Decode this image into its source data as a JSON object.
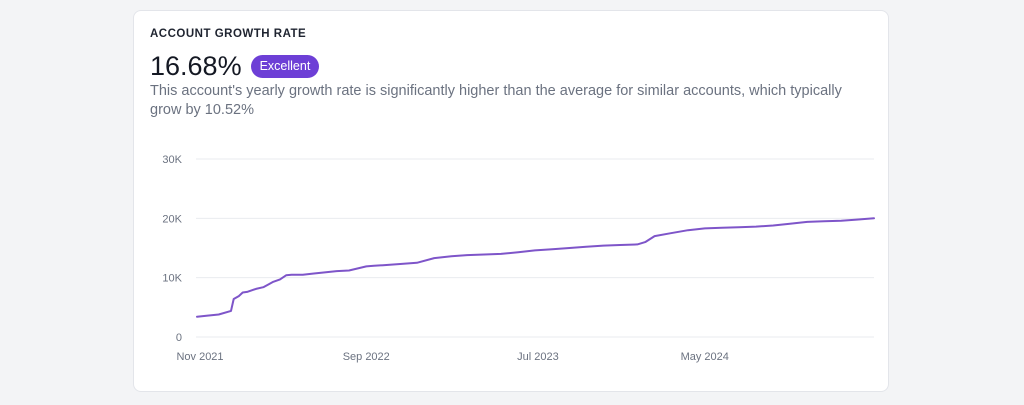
{
  "card": {
    "title": "ACCOUNT GROWTH RATE",
    "value": "16.68%",
    "badge": "Excellent",
    "description": "This account's yearly growth rate is significantly higher than the average for similar accounts, which typically grow by 10.52%"
  },
  "colors": {
    "line": "#7e55c9",
    "badge": "#6d3fd6",
    "grid": "#e9ebef"
  },
  "chart_data": {
    "type": "line",
    "title": "",
    "xlabel": "",
    "ylabel": "",
    "ylim": [
      0,
      30000
    ],
    "y_ticks": [
      {
        "value": 0,
        "label": "0"
      },
      {
        "value": 10000,
        "label": "10K"
      },
      {
        "value": 20000,
        "label": "20K"
      },
      {
        "value": 30000,
        "label": "30K"
      }
    ],
    "x_ticks": [
      {
        "date": "2021-11",
        "label": "Nov 2021"
      },
      {
        "date": "2022-09",
        "label": "Sep 2022"
      },
      {
        "date": "2023-07",
        "label": "Jul 2023"
      },
      {
        "date": "2024-05",
        "label": "May 2024"
      }
    ],
    "grid": "horizontal",
    "series": [
      {
        "x": [
          "2021-11-01",
          "2021-11-20",
          "2021-12-10",
          "2022-01-01",
          "2022-01-06",
          "2022-01-15",
          "2022-01-22",
          "2022-01-30",
          "2022-02-15",
          "2022-02-28",
          "2022-03-10",
          "2022-03-18",
          "2022-03-30",
          "2022-04-10",
          "2022-04-20",
          "2022-05-10",
          "2022-05-30",
          "2022-06-10",
          "2022-07-10",
          "2022-08-01",
          "2022-09-01",
          "2022-09-15",
          "2022-10-01",
          "2022-11-01",
          "2022-12-01",
          "2023-01-01",
          "2023-02-01",
          "2023-03-01",
          "2023-04-01",
          "2023-05-01",
          "2023-06-01",
          "2023-07-01",
          "2023-08-01",
          "2023-09-01",
          "2023-10-01",
          "2023-11-01",
          "2023-12-01",
          "2024-01-01",
          "2024-01-15",
          "2024-02-01",
          "2024-03-01",
          "2024-04-01",
          "2024-05-01",
          "2024-06-01",
          "2024-07-01",
          "2024-08-01",
          "2024-09-01",
          "2024-10-01",
          "2024-11-01",
          "2024-12-01",
          "2025-01-01",
          "2025-02-01",
          "2025-03-01"
        ],
        "y": [
          3400,
          3600,
          3800,
          4400,
          6400,
          6900,
          7500,
          7600,
          8100,
          8400,
          8900,
          9300,
          9700,
          10400,
          10500,
          10500,
          10700,
          10800,
          11100,
          11200,
          11900,
          12000,
          12100,
          12300,
          12500,
          13300,
          13600,
          13800,
          13900,
          14000,
          14300,
          14600,
          14800,
          15000,
          15200,
          15400,
          15500,
          15600,
          16000,
          17000,
          17500,
          18000,
          18300,
          18400,
          18500,
          18600,
          18800,
          19100,
          19400,
          19500,
          19600,
          19800,
          20000
        ]
      }
    ]
  }
}
